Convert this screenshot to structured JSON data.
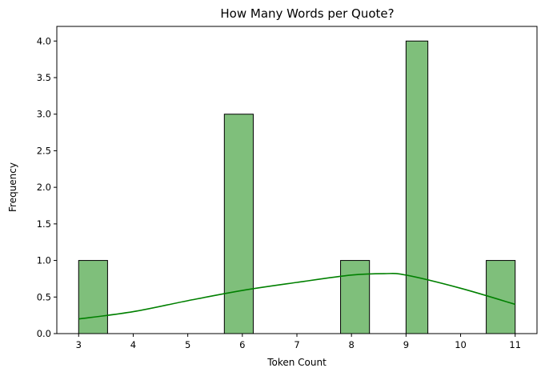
{
  "chart_data": {
    "type": "bar",
    "title": "How Many Words per Quote?",
    "xlabel": "Token Count",
    "ylabel": "Frequency",
    "xlim": [
      2.6,
      11.4
    ],
    "ylim": [
      0,
      4.2
    ],
    "x_ticks": [
      "3",
      "4",
      "5",
      "6",
      "7",
      "8",
      "9",
      "10",
      "11"
    ],
    "y_ticks": [
      "0.0",
      "0.5",
      "1.0",
      "1.5",
      "2.0",
      "2.5",
      "3.0",
      "3.5",
      "4.0"
    ],
    "bins": [
      {
        "start": 3.0,
        "end": 3.53,
        "count": 1
      },
      {
        "start": 5.67,
        "end": 6.2,
        "count": 3
      },
      {
        "start": 7.8,
        "end": 8.33,
        "count": 1
      },
      {
        "start": 9.0,
        "end": 9.4,
        "count": 4
      },
      {
        "start": 10.47,
        "end": 11.0,
        "count": 1
      }
    ],
    "kde": {
      "x": [
        3.0,
        4.0,
        5.0,
        6.0,
        7.0,
        8.0,
        8.6,
        9.0,
        10.0,
        11.0
      ],
      "y": [
        0.2,
        0.3,
        0.45,
        0.59,
        0.7,
        0.8,
        0.82,
        0.8,
        0.62,
        0.4
      ]
    },
    "bar_color": "#7fbf7b",
    "line_color": "#008000"
  }
}
